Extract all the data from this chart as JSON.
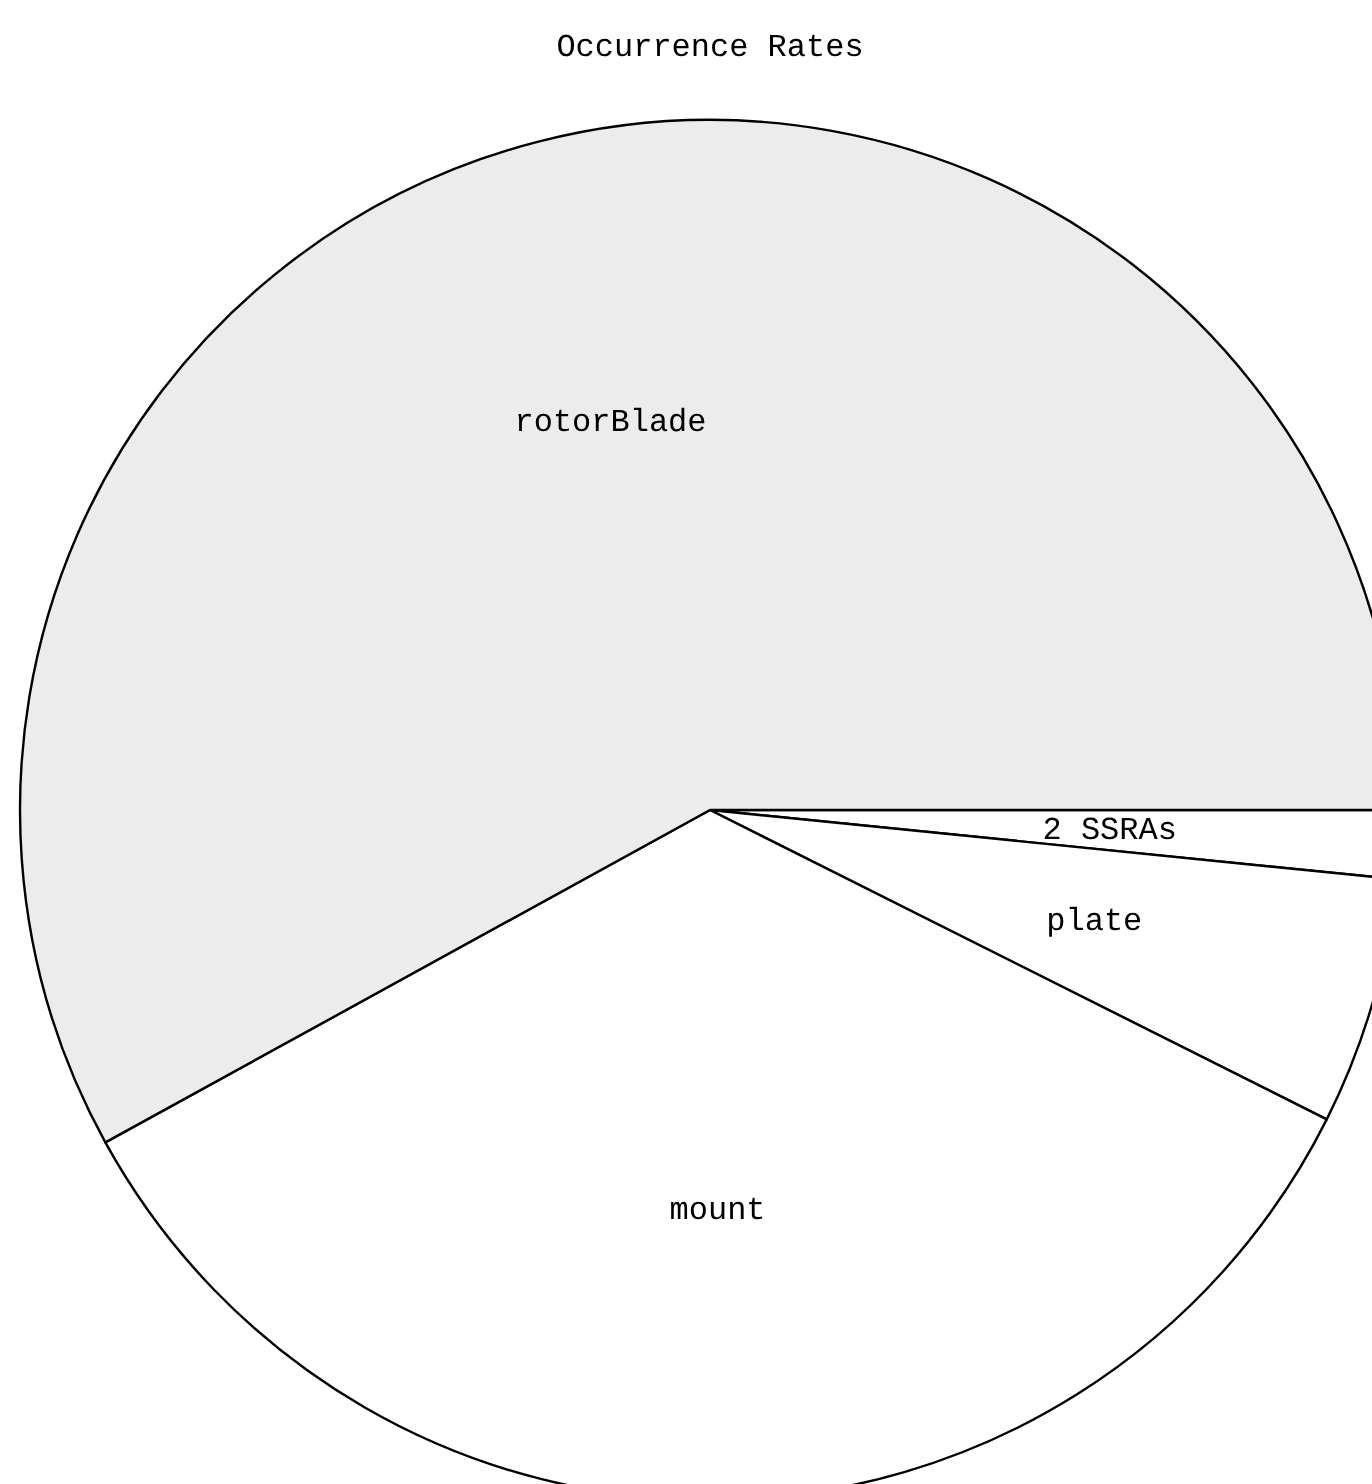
{
  "chart_data": {
    "type": "pie",
    "title": "Occurrence Rates",
    "categories": [
      "2 SSRAs",
      "plate",
      "mount",
      "rotorBlade"
    ],
    "values": [
      1.6,
      5.8,
      34.6,
      58.0
    ],
    "colors": [
      "#ffffff",
      "#ffffff",
      "#ffffff",
      "#ececec"
    ]
  }
}
